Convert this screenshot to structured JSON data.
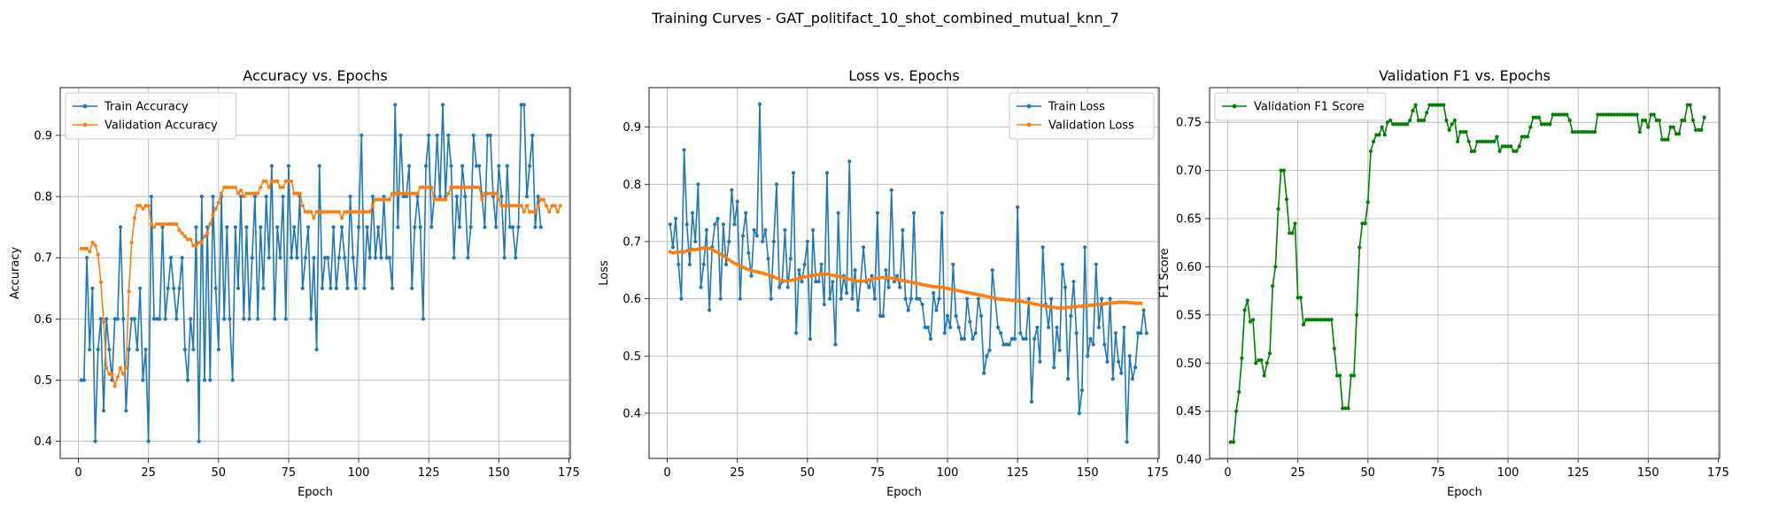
{
  "figure": {
    "suptitle": "Training Curves - GAT_politifact_10_shot_combined_mutual_knn_7"
  },
  "chart_data": [
    {
      "type": "line",
      "title": "Accuracy vs. Epochs",
      "xlabel": "Epoch",
      "ylabel": "Accuracy",
      "xlim": [
        -6.5,
        175.5
      ],
      "ylim": [
        0.372,
        0.978
      ],
      "xticks": [
        0,
        25,
        50,
        75,
        100,
        125,
        150,
        175
      ],
      "yticks": [
        0.4,
        0.5,
        0.6,
        0.7,
        0.8,
        0.9
      ],
      "grid": true,
      "legend_position": "upper-left",
      "series": [
        {
          "name": "Train Accuracy",
          "color": "#1f77b4",
          "values": [
            0.5,
            0.5,
            0.7,
            0.55,
            0.65,
            0.4,
            0.55,
            0.6,
            0.45,
            0.6,
            0.55,
            0.5,
            0.6,
            0.6,
            0.75,
            0.6,
            0.45,
            0.55,
            0.6,
            0.6,
            0.55,
            0.65,
            0.5,
            0.55,
            0.4,
            0.8,
            0.6,
            0.6,
            0.6,
            0.75,
            0.6,
            0.65,
            0.7,
            0.65,
            0.6,
            0.65,
            0.7,
            0.55,
            0.5,
            0.6,
            0.55,
            0.75,
            0.4,
            0.8,
            0.5,
            0.75,
            0.5,
            0.8,
            0.65,
            0.55,
            0.8,
            0.6,
            0.75,
            0.6,
            0.5,
            0.75,
            0.65,
            0.8,
            0.6,
            0.75,
            0.6,
            0.7,
            0.8,
            0.6,
            0.75,
            0.65,
            0.8,
            0.7,
            0.85,
            0.6,
            0.75,
            0.7,
            0.8,
            0.6,
            0.85,
            0.7,
            0.75,
            0.7,
            0.8,
            0.65,
            0.7,
            0.75,
            0.6,
            0.7,
            0.55,
            0.85,
            0.65,
            0.7,
            0.7,
            0.65,
            0.75,
            0.65,
            0.7,
            0.75,
            0.7,
            0.65,
            0.8,
            0.7,
            0.65,
            0.75,
            0.9,
            0.65,
            0.75,
            0.7,
            0.8,
            0.7,
            0.75,
            0.7,
            0.8,
            0.7,
            0.7,
            0.65,
            0.95,
            0.75,
            0.9,
            0.8,
            0.8,
            0.85,
            0.65,
            0.75,
            0.8,
            0.75,
            0.6,
            0.85,
            0.9,
            0.75,
            0.8,
            0.9,
            0.8,
            0.95,
            0.8,
            0.9,
            0.85,
            0.7,
            0.8,
            0.75,
            0.85,
            0.8,
            0.7,
            0.75,
            0.9,
            0.85,
            0.85,
            0.8,
            0.75,
            0.9,
            0.9,
            0.8,
            0.75,
            0.85,
            0.8,
            0.7,
            0.85,
            0.75,
            0.75,
            0.7,
            0.75,
            0.95,
            0.95,
            0.8,
            0.85,
            0.9,
            0.75,
            0.8,
            0.75
          ],
          "x_start": 1
        },
        {
          "name": "Validation Accuracy",
          "color": "#ff7f0e",
          "values": [
            0.715,
            0.715,
            0.715,
            0.71,
            0.725,
            0.72,
            0.705,
            0.66,
            0.595,
            0.52,
            0.51,
            0.51,
            0.49,
            0.505,
            0.52,
            0.51,
            0.52,
            0.645,
            0.725,
            0.765,
            0.785,
            0.785,
            0.78,
            0.785,
            0.785,
            0.755,
            0.75,
            0.755,
            0.755,
            0.755,
            0.755,
            0.755,
            0.755,
            0.755,
            0.755,
            0.745,
            0.74,
            0.735,
            0.73,
            0.73,
            0.72,
            0.72,
            0.725,
            0.725,
            0.735,
            0.74,
            0.755,
            0.77,
            0.78,
            0.79,
            0.805,
            0.815,
            0.815,
            0.815,
            0.815,
            0.815,
            0.805,
            0.81,
            0.8,
            0.805,
            0.805,
            0.805,
            0.805,
            0.805,
            0.815,
            0.825,
            0.825,
            0.815,
            0.825,
            0.825,
            0.825,
            0.815,
            0.815,
            0.825,
            0.825,
            0.825,
            0.805,
            0.805,
            0.805,
            0.785,
            0.775,
            0.775,
            0.775,
            0.765,
            0.775,
            0.775,
            0.775,
            0.775,
            0.775,
            0.775,
            0.775,
            0.775,
            0.775,
            0.765,
            0.775,
            0.775,
            0.775,
            0.775,
            0.775,
            0.775,
            0.775,
            0.775,
            0.775,
            0.775,
            0.785,
            0.795,
            0.795,
            0.795,
            0.795,
            0.795,
            0.795,
            0.805,
            0.805,
            0.805,
            0.805,
            0.805,
            0.805,
            0.805,
            0.805,
            0.805,
            0.805,
            0.815,
            0.815,
            0.815,
            0.815,
            0.815,
            0.795,
            0.795,
            0.795,
            0.795,
            0.795,
            0.805,
            0.815,
            0.815,
            0.815,
            0.815,
            0.815,
            0.815,
            0.815,
            0.815,
            0.815,
            0.815,
            0.815,
            0.795,
            0.805,
            0.805,
            0.805,
            0.805,
            0.805,
            0.795,
            0.785,
            0.785,
            0.785,
            0.785,
            0.785,
            0.785,
            0.785,
            0.785,
            0.775,
            0.785,
            0.775,
            0.775,
            0.775,
            0.785,
            0.795,
            0.795,
            0.785,
            0.775,
            0.785,
            0.785,
            0.775,
            0.785
          ],
          "x_start": 1
        }
      ]
    },
    {
      "type": "line",
      "title": "Loss vs. Epochs",
      "xlabel": "Epoch",
      "ylabel": "Loss",
      "xlim": [
        -6.5,
        175.5
      ],
      "ylim": [
        0.321,
        0.969
      ],
      "xticks": [
        0,
        25,
        50,
        75,
        100,
        125,
        150,
        175
      ],
      "yticks": [
        0.4,
        0.5,
        0.6,
        0.7,
        0.8,
        0.9
      ],
      "grid": true,
      "legend_position": "upper-right",
      "series": [
        {
          "name": "Train Loss",
          "color": "#1f77b4",
          "values": [
            0.73,
            0.69,
            0.74,
            0.66,
            0.6,
            0.86,
            0.73,
            0.66,
            0.75,
            0.7,
            0.8,
            0.62,
            0.66,
            0.72,
            0.58,
            0.69,
            0.73,
            0.74,
            0.6,
            0.73,
            0.66,
            0.7,
            0.79,
            0.73,
            0.77,
            0.6,
            0.71,
            0.75,
            0.68,
            0.64,
            0.72,
            0.71,
            0.94,
            0.7,
            0.72,
            0.67,
            0.6,
            0.7,
            0.8,
            0.62,
            0.63,
            0.72,
            0.62,
            0.67,
            0.82,
            0.54,
            0.65,
            0.63,
            0.66,
            0.7,
            0.53,
            0.72,
            0.63,
            0.63,
            0.66,
            0.59,
            0.82,
            0.6,
            0.63,
            0.52,
            0.75,
            0.6,
            0.64,
            0.61,
            0.84,
            0.6,
            0.65,
            0.58,
            0.63,
            0.69,
            0.63,
            0.62,
            0.64,
            0.6,
            0.75,
            0.57,
            0.57,
            0.65,
            0.62,
            0.79,
            0.63,
            0.64,
            0.62,
            0.72,
            0.6,
            0.58,
            0.6,
            0.75,
            0.6,
            0.6,
            0.59,
            0.55,
            0.55,
            0.53,
            0.61,
            0.58,
            0.6,
            0.75,
            0.54,
            0.57,
            0.55,
            0.66,
            0.57,
            0.55,
            0.53,
            0.53,
            0.6,
            0.56,
            0.53,
            0.54,
            0.6,
            0.57,
            0.47,
            0.5,
            0.51,
            0.65,
            0.6,
            0.55,
            0.54,
            0.52,
            0.52,
            0.52,
            0.53,
            0.53,
            0.76,
            0.54,
            0.53,
            0.53,
            0.6,
            0.42,
            0.53,
            0.55,
            0.49,
            0.69,
            0.59,
            0.55,
            0.6,
            0.48,
            0.55,
            0.51,
            0.66,
            0.62,
            0.46,
            0.57,
            0.63,
            0.54,
            0.4,
            0.44,
            0.69,
            0.5,
            0.53,
            0.52,
            0.66,
            0.55,
            0.6,
            0.52,
            0.49,
            0.6,
            0.46,
            0.54,
            0.49,
            0.47,
            0.55,
            0.35,
            0.5,
            0.46,
            0.48,
            0.54,
            0.54,
            0.58,
            0.54
          ],
          "x_start": 1
        },
        {
          "name": "Validation Loss",
          "color": "#ff7f0e",
          "values": [
            0.682,
            0.68,
            0.681,
            0.682,
            0.682,
            0.682,
            0.684,
            0.684,
            0.686,
            0.686,
            0.687,
            0.688,
            0.689,
            0.689,
            0.688,
            0.686,
            0.683,
            0.681,
            0.678,
            0.675,
            0.672,
            0.668,
            0.665,
            0.662,
            0.66,
            0.657,
            0.655,
            0.653,
            0.651,
            0.65,
            0.648,
            0.647,
            0.646,
            0.645,
            0.643,
            0.642,
            0.64,
            0.638,
            0.636,
            0.634,
            0.632,
            0.631,
            0.631,
            0.632,
            0.633,
            0.634,
            0.636,
            0.637,
            0.638,
            0.639,
            0.64,
            0.641,
            0.642,
            0.642,
            0.643,
            0.643,
            0.643,
            0.642,
            0.641,
            0.64,
            0.639,
            0.638,
            0.637,
            0.636,
            0.634,
            0.633,
            0.632,
            0.631,
            0.631,
            0.631,
            0.632,
            0.633,
            0.634,
            0.635,
            0.636,
            0.637,
            0.637,
            0.637,
            0.637,
            0.636,
            0.635,
            0.634,
            0.633,
            0.632,
            0.631,
            0.63,
            0.629,
            0.628,
            0.627,
            0.626,
            0.625,
            0.624,
            0.623,
            0.622,
            0.621,
            0.621,
            0.62,
            0.62,
            0.619,
            0.618,
            0.617,
            0.616,
            0.615,
            0.614,
            0.613,
            0.612,
            0.611,
            0.61,
            0.609,
            0.608,
            0.607,
            0.606,
            0.605,
            0.604,
            0.603,
            0.602,
            0.601,
            0.6,
            0.599,
            0.599,
            0.598,
            0.598,
            0.597,
            0.597,
            0.596,
            0.596,
            0.595,
            0.594,
            0.593,
            0.592,
            0.591,
            0.59,
            0.589,
            0.588,
            0.587,
            0.586,
            0.585,
            0.585,
            0.584,
            0.584,
            0.584,
            0.584,
            0.585,
            0.585,
            0.586,
            0.586,
            0.587,
            0.587,
            0.588,
            0.588,
            0.589,
            0.589,
            0.59,
            0.59,
            0.591,
            0.591,
            0.592,
            0.592,
            0.593,
            0.593,
            0.594,
            0.594,
            0.594,
            0.594,
            0.593,
            0.593,
            0.592,
            0.592,
            0.592
          ],
          "x_start": 1
        }
      ]
    },
    {
      "type": "line",
      "title": "Validation F1 vs. Epochs",
      "xlabel": "Epoch",
      "ylabel": "F1 Score",
      "xlim": [
        -6.5,
        175.5
      ],
      "ylim": [
        0.401,
        0.786
      ],
      "xticks": [
        0,
        25,
        50,
        75,
        100,
        125,
        150,
        175
      ],
      "yticks": [
        0.4,
        0.45,
        0.5,
        0.55,
        0.6,
        0.65,
        0.7,
        0.75
      ],
      "ytick_format": 2,
      "grid": true,
      "legend_position": "upper-left",
      "series": [
        {
          "name": "Validation F1 Score",
          "color": "#008000",
          "values": [
            0.418,
            0.418,
            0.45,
            0.47,
            0.505,
            0.555,
            0.565,
            0.543,
            0.545,
            0.5,
            0.503,
            0.503,
            0.487,
            0.5,
            0.51,
            0.58,
            0.6,
            0.66,
            0.7,
            0.7,
            0.67,
            0.635,
            0.635,
            0.645,
            0.568,
            0.568,
            0.54,
            0.545,
            0.545,
            0.545,
            0.545,
            0.545,
            0.545,
            0.545,
            0.545,
            0.545,
            0.545,
            0.515,
            0.487,
            0.487,
            0.453,
            0.453,
            0.453,
            0.487,
            0.487,
            0.55,
            0.62,
            0.645,
            0.645,
            0.667,
            0.72,
            0.73,
            0.737,
            0.737,
            0.745,
            0.737,
            0.75,
            0.752,
            0.748,
            0.748,
            0.748,
            0.748,
            0.748,
            0.748,
            0.752,
            0.762,
            0.768,
            0.752,
            0.752,
            0.752,
            0.76,
            0.768,
            0.768,
            0.768,
            0.768,
            0.768,
            0.768,
            0.752,
            0.742,
            0.748,
            0.752,
            0.73,
            0.74,
            0.74,
            0.74,
            0.73,
            0.72,
            0.72,
            0.73,
            0.73,
            0.73,
            0.73,
            0.73,
            0.73,
            0.73,
            0.735,
            0.72,
            0.725,
            0.725,
            0.725,
            0.725,
            0.72,
            0.72,
            0.725,
            0.735,
            0.735,
            0.735,
            0.745,
            0.755,
            0.755,
            0.755,
            0.748,
            0.748,
            0.748,
            0.748,
            0.758,
            0.758,
            0.758,
            0.758,
            0.758,
            0.758,
            0.752,
            0.74,
            0.74,
            0.74,
            0.74,
            0.74,
            0.74,
            0.74,
            0.74,
            0.74,
            0.758,
            0.758,
            0.758,
            0.758,
            0.758,
            0.758,
            0.758,
            0.758,
            0.758,
            0.758,
            0.758,
            0.758,
            0.758,
            0.758,
            0.758,
            0.74,
            0.752,
            0.752,
            0.745,
            0.758,
            0.758,
            0.752,
            0.752,
            0.732,
            0.732,
            0.732,
            0.745,
            0.745,
            0.738,
            0.738,
            0.752,
            0.752,
            0.768,
            0.768,
            0.752,
            0.742,
            0.742,
            0.742,
            0.755
          ],
          "x_start": 1
        }
      ]
    }
  ]
}
